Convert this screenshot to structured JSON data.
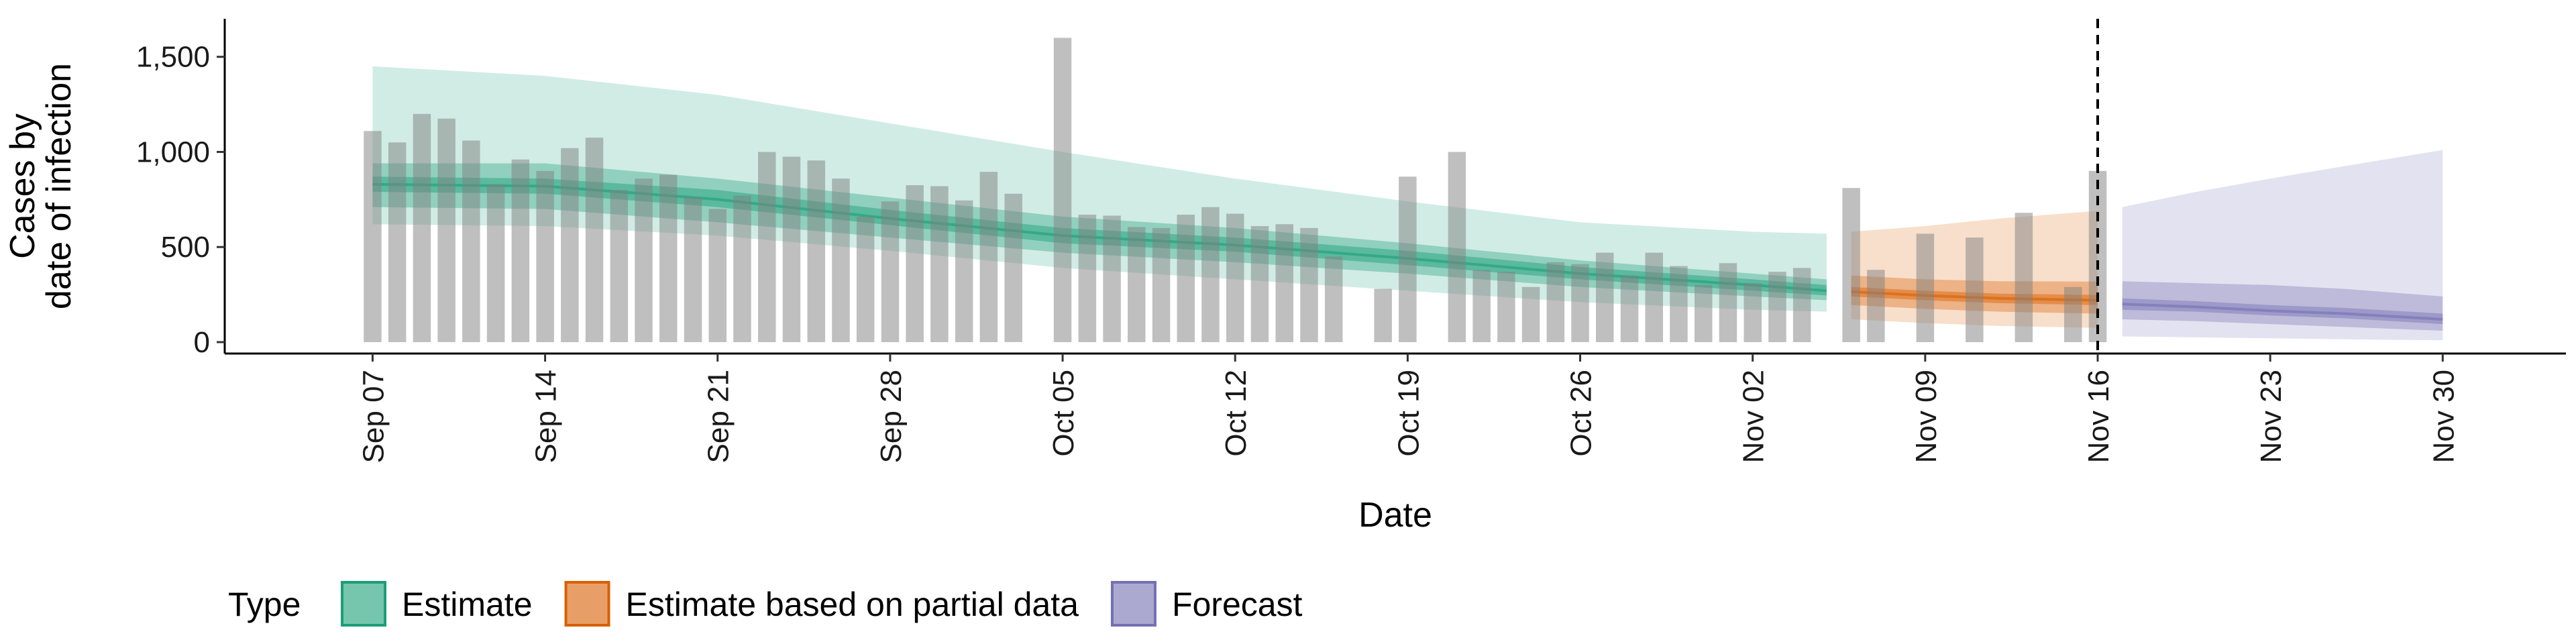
{
  "chart_data": {
    "type": "bar",
    "title": "",
    "xlabel": "Date",
    "ylabel_lines": [
      "Cases by",
      "date of infection"
    ],
    "y_ticks": [
      {
        "value": 0,
        "label": "0"
      },
      {
        "value": 500,
        "label": "500"
      },
      {
        "value": 1000,
        "label": "1,000"
      },
      {
        "value": 1500,
        "label": "1,500"
      }
    ],
    "x_ticks": [
      {
        "date": "2020-09-07",
        "label": "Sep 07"
      },
      {
        "date": "2020-09-14",
        "label": "Sep 14"
      },
      {
        "date": "2020-09-21",
        "label": "Sep 21"
      },
      {
        "date": "2020-09-28",
        "label": "Sep 28"
      },
      {
        "date": "2020-10-05",
        "label": "Oct 05"
      },
      {
        "date": "2020-10-12",
        "label": "Oct 12"
      },
      {
        "date": "2020-10-19",
        "label": "Oct 19"
      },
      {
        "date": "2020-10-26",
        "label": "Oct 26"
      },
      {
        "date": "2020-11-02",
        "label": "Nov 02"
      },
      {
        "date": "2020-11-09",
        "label": "Nov 09"
      },
      {
        "date": "2020-11-16",
        "label": "Nov 16"
      },
      {
        "date": "2020-11-23",
        "label": "Nov 23"
      },
      {
        "date": "2020-11-30",
        "label": "Nov 30"
      }
    ],
    "ylim": [
      -60,
      1700
    ],
    "xlim": [
      "2020-09-01",
      "2020-12-05"
    ],
    "grid": false,
    "legend_position": "bottom",
    "legend_title": "Type",
    "vline_date": "2020-11-16",
    "observed_cases": {
      "dates": [
        "2020-09-07",
        "2020-09-08",
        "2020-09-09",
        "2020-09-10",
        "2020-09-11",
        "2020-09-12",
        "2020-09-13",
        "2020-09-14",
        "2020-09-15",
        "2020-09-16",
        "2020-09-17",
        "2020-09-18",
        "2020-09-19",
        "2020-09-20",
        "2020-09-21",
        "2020-09-22",
        "2020-09-23",
        "2020-09-24",
        "2020-09-25",
        "2020-09-26",
        "2020-09-27",
        "2020-09-28",
        "2020-09-29",
        "2020-09-30",
        "2020-10-01",
        "2020-10-02",
        "2020-10-03",
        "2020-10-04",
        "2020-10-05",
        "2020-10-06",
        "2020-10-07",
        "2020-10-08",
        "2020-10-09",
        "2020-10-10",
        "2020-10-11",
        "2020-10-12",
        "2020-10-13",
        "2020-10-14",
        "2020-10-15",
        "2020-10-16",
        "2020-10-17",
        "2020-10-18",
        "2020-10-19",
        "2020-10-20",
        "2020-10-21",
        "2020-10-22",
        "2020-10-23",
        "2020-10-24",
        "2020-10-25",
        "2020-10-26",
        "2020-10-27",
        "2020-10-28",
        "2020-10-29",
        "2020-10-30",
        "2020-10-31",
        "2020-11-01",
        "2020-11-02",
        "2020-11-03",
        "2020-11-04",
        "2020-11-05",
        "2020-11-06",
        "2020-11-07",
        "2020-11-08",
        "2020-11-09",
        "2020-11-10",
        "2020-11-11",
        "2020-11-12",
        "2020-11-13",
        "2020-11-14",
        "2020-11-15",
        "2020-11-16"
      ],
      "values": [
        1110,
        1050,
        1200,
        1175,
        1060,
        830,
        960,
        900,
        1020,
        1075,
        800,
        860,
        880,
        760,
        700,
        770,
        1000,
        975,
        955,
        860,
        660,
        740,
        825,
        820,
        745,
        895,
        780,
        0,
        1600,
        670,
        665,
        605,
        600,
        670,
        710,
        675,
        610,
        620,
        600,
        450,
        0,
        280,
        870,
        0,
        1000,
        380,
        370,
        290,
        420,
        410,
        470,
        350,
        470,
        400,
        300,
        415,
        310,
        370,
        390,
        0,
        810,
        380,
        0,
        570,
        0,
        550,
        0,
        680,
        0,
        290,
        900
      ]
    },
    "series": [
      {
        "name": "Estimate",
        "color": "#1b9e77",
        "dates": [
          "2020-09-07",
          "2020-09-14",
          "2020-09-21",
          "2020-09-28",
          "2020-10-05",
          "2020-10-12",
          "2020-10-19",
          "2020-10-26",
          "2020-11-02",
          "2020-11-05"
        ],
        "median": [
          830,
          820,
          750,
          650,
          560,
          510,
          440,
          360,
          300,
          270
        ],
        "inner": [
          [
            790,
            870
          ],
          [
            780,
            860
          ],
          [
            710,
            800
          ],
          [
            615,
            695
          ],
          [
            520,
            600
          ],
          [
            475,
            550
          ],
          [
            405,
            480
          ],
          [
            330,
            395
          ],
          [
            270,
            330
          ],
          [
            245,
            300
          ]
        ],
        "mid": [
          [
            710,
            940
          ],
          [
            700,
            940
          ],
          [
            630,
            860
          ],
          [
            550,
            760
          ],
          [
            470,
            660
          ],
          [
            420,
            600
          ],
          [
            360,
            520
          ],
          [
            290,
            430
          ],
          [
            240,
            360
          ],
          [
            220,
            330
          ]
        ],
        "outer": [
          [
            620,
            1450
          ],
          [
            610,
            1400
          ],
          [
            560,
            1300
          ],
          [
            480,
            1150
          ],
          [
            390,
            1000
          ],
          [
            330,
            860
          ],
          [
            270,
            740
          ],
          [
            210,
            630
          ],
          [
            170,
            580
          ],
          [
            160,
            570
          ]
        ]
      },
      {
        "name": "Estimate based on partial data",
        "color": "#d95f02",
        "dates": [
          "2020-11-06",
          "2020-11-09",
          "2020-11-12",
          "2020-11-16"
        ],
        "median": [
          265,
          245,
          230,
          220
        ],
        "inner": [
          [
            240,
            290
          ],
          [
            220,
            270
          ],
          [
            205,
            255
          ],
          [
            195,
            248
          ]
        ],
        "mid": [
          [
            195,
            350
          ],
          [
            175,
            330
          ],
          [
            160,
            320
          ],
          [
            150,
            318
          ]
        ],
        "outer": [
          [
            120,
            580
          ],
          [
            100,
            610
          ],
          [
            85,
            650
          ],
          [
            75,
            690
          ]
        ]
      },
      {
        "name": "Forecast",
        "color": "#7570b3",
        "dates": [
          "2020-11-17",
          "2020-11-20",
          "2020-11-23",
          "2020-11-26",
          "2020-11-30"
        ],
        "median": [
          200,
          185,
          165,
          150,
          120
        ],
        "inner": [
          [
            170,
            230
          ],
          [
            160,
            215
          ],
          [
            140,
            195
          ],
          [
            125,
            180
          ],
          [
            95,
            150
          ]
        ],
        "mid": [
          [
            120,
            320
          ],
          [
            110,
            310
          ],
          [
            95,
            300
          ],
          [
            80,
            280
          ],
          [
            60,
            240
          ]
        ],
        "outer": [
          [
            30,
            710
          ],
          [
            25,
            790
          ],
          [
            20,
            860
          ],
          [
            15,
            925
          ],
          [
            10,
            1010
          ]
        ]
      }
    ]
  }
}
